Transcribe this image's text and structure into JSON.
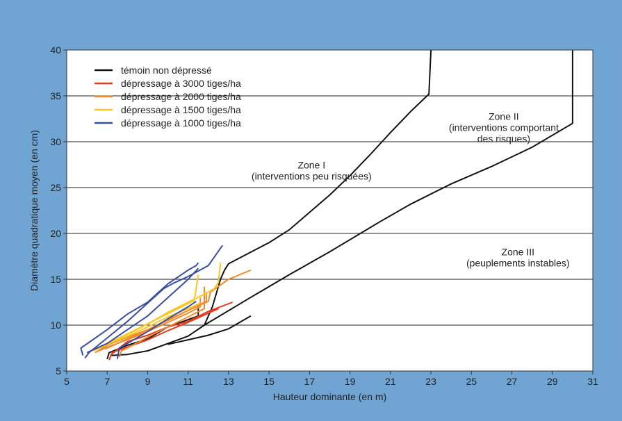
{
  "chart_data": {
    "type": "line",
    "title": "",
    "xlabel": "Hauteur dominante (en m)",
    "ylabel": "Diamètre quadratique moyen (en cm)",
    "xlim": [
      5,
      31
    ],
    "ylim": [
      5,
      40
    ],
    "xticks": [
      5,
      7,
      9,
      11,
      13,
      15,
      17,
      19,
      21,
      23,
      25,
      27,
      29,
      31
    ],
    "yticks": [
      5,
      10,
      15,
      20,
      25,
      30,
      35,
      40
    ],
    "grid": "horizontal",
    "legend_position": "top-left",
    "colors": {
      "background": "#6fa4d3",
      "plot": "#ffffff",
      "temoin": "#111111",
      "d3000": "#e53a1f",
      "d2000": "#f28c2a",
      "d1500": "#f9c722",
      "d1000": "#3a4ea0"
    },
    "series": [
      {
        "name": "témoin non dépressé",
        "color": "#111111",
        "lines": [
          [
            [
              7.0,
              6.3
            ],
            [
              7.1,
              7.0
            ],
            [
              8.0,
              7.8
            ],
            [
              9.0,
              8.5
            ],
            [
              10.0,
              9.8
            ],
            [
              11.0,
              10.6
            ],
            [
              11.5,
              11.0
            ],
            [
              11.5,
              12.0
            ]
          ],
          [
            [
              10.0,
              7.9
            ],
            [
              11.0,
              8.4
            ],
            [
              12.0,
              8.9
            ],
            [
              13.0,
              9.6
            ],
            [
              14.1,
              11.0
            ]
          ],
          [
            [
              7.2,
              6.7
            ],
            [
              8.0,
              6.8
            ],
            [
              9.0,
              7.2
            ],
            [
              10.0,
              8.0
            ],
            [
              11.0,
              8.8
            ],
            [
              11.8,
              10.0
            ],
            [
              12.2,
              12.0
            ],
            [
              12.6,
              15.0
            ],
            [
              12.8,
              16.0
            ]
          ]
        ]
      },
      {
        "name": "dépressage à 3000 tiges/ha",
        "color": "#e53a1f",
        "lines": [
          [
            [
              7.1,
              6.2
            ],
            [
              7.2,
              6.8
            ],
            [
              8.0,
              8.2
            ],
            [
              9.0,
              8.9
            ],
            [
              10.0,
              9.8
            ],
            [
              11.0,
              10.4
            ],
            [
              12.0,
              11.5
            ],
            [
              13.2,
              12.5
            ]
          ],
          [
            [
              7.2,
              7.0
            ],
            [
              8.0,
              7.6
            ],
            [
              9.0,
              8.4
            ],
            [
              10.0,
              9.4
            ],
            [
              11.0,
              10.3
            ],
            [
              12.0,
              11.3
            ],
            [
              12.5,
              11.8
            ]
          ]
        ]
      },
      {
        "name": "dépressage à 2000 tiges/ha",
        "color": "#f28c2a",
        "lines": [
          [
            [
              6.4,
              7.0
            ],
            [
              7.0,
              7.8
            ],
            [
              8.0,
              8.7
            ],
            [
              9.0,
              9.5
            ],
            [
              10.0,
              10.5
            ],
            [
              11.0,
              11.6
            ],
            [
              11.9,
              12.6
            ],
            [
              11.9,
              13.6
            ]
          ],
          [
            [
              6.9,
              7.4
            ],
            [
              8.0,
              8.5
            ],
            [
              9.0,
              9.5
            ],
            [
              10.0,
              10.6
            ],
            [
              11.0,
              11.6
            ],
            [
              12.0,
              12.6
            ],
            [
              12.1,
              13.6
            ],
            [
              13.0,
              15.0
            ],
            [
              14.1,
              16.0
            ]
          ],
          [
            [
              7.6,
              6.5
            ],
            [
              7.7,
              7.2
            ],
            [
              8.0,
              7.5
            ],
            [
              9.0,
              8.7
            ],
            [
              10.0,
              9.8
            ],
            [
              11.0,
              10.9
            ],
            [
              11.8,
              11.8
            ],
            [
              11.8,
              14.2
            ]
          ],
          [
            [
              6.6,
              7.2
            ],
            [
              7.0,
              7.6
            ],
            [
              8.0,
              8.4
            ],
            [
              9.0,
              9.3
            ],
            [
              10.0,
              10.3
            ],
            [
              11.0,
              11.3
            ],
            [
              11.6,
              12.0
            ],
            [
              11.6,
              13.0
            ]
          ]
        ]
      },
      {
        "name": "dépressage à 1500 tiges/ha",
        "color": "#f9c722",
        "lines": [
          [
            [
              6.5,
              7.5
            ],
            [
              7.0,
              8.0
            ],
            [
              8.0,
              9.0
            ],
            [
              9.0,
              10.1
            ],
            [
              10.0,
              11.4
            ],
            [
              11.0,
              12.5
            ],
            [
              12.0,
              13.6
            ],
            [
              12.3,
              14.0
            ],
            [
              12.5,
              14.7
            ],
            [
              12.6,
              16.8
            ]
          ],
          [
            [
              6.8,
              7.8
            ],
            [
              7.5,
              8.5
            ],
            [
              8.5,
              9.6
            ],
            [
              9.5,
              10.7
            ],
            [
              10.5,
              11.8
            ],
            [
              11.3,
              12.7
            ],
            [
              11.4,
              14.0
            ],
            [
              11.5,
              15.5
            ]
          ],
          [
            [
              6.3,
              7.2
            ],
            [
              7.0,
              7.9
            ],
            [
              8.0,
              8.8
            ],
            [
              9.0,
              9.8
            ],
            [
              10.0,
              10.9
            ],
            [
              11.0,
              11.8
            ],
            [
              11.6,
              12.4
            ]
          ]
        ]
      },
      {
        "name": "dépressage à 1000 tiges/ha",
        "color": "#3a4ea0",
        "lines": [
          [
            [
              5.8,
              6.7
            ],
            [
              5.7,
              7.5
            ],
            [
              7.0,
              9.5
            ],
            [
              8.0,
              11.2
            ],
            [
              9.0,
              12.5
            ],
            [
              9.5,
              13.5
            ],
            [
              10.0,
              14.5
            ],
            [
              11.0,
              16.0
            ],
            [
              11.4,
              16.5
            ],
            [
              11.5,
              16.8
            ]
          ],
          [
            [
              5.9,
              6.4
            ],
            [
              6.1,
              7.0
            ],
            [
              7.0,
              8.6
            ],
            [
              8.0,
              10.4
            ],
            [
              9.0,
              12.4
            ],
            [
              9.8,
              14.0
            ],
            [
              10.3,
              14.6
            ],
            [
              11.0,
              15.3
            ],
            [
              12.0,
              16.5
            ],
            [
              12.7,
              18.7
            ]
          ],
          [
            [
              6.0,
              7.0
            ],
            [
              7.0,
              8.0
            ],
            [
              8.0,
              9.5
            ],
            [
              9.0,
              11.0
            ],
            [
              10.0,
              13.0
            ],
            [
              11.0,
              15.0
            ],
            [
              11.5,
              16.2
            ]
          ],
          [
            [
              7.5,
              6.3
            ],
            [
              7.6,
              7.5
            ],
            [
              8.0,
              8.0
            ],
            [
              9.0,
              9.3
            ],
            [
              10.0,
              10.7
            ],
            [
              11.0,
              12.0
            ],
            [
              11.4,
              12.6
            ]
          ]
        ]
      }
    ],
    "boundaries": [
      [
        [
          12.8,
          16.0
        ],
        [
          13.0,
          16.7
        ],
        [
          15.0,
          19.0
        ],
        [
          16.0,
          20.4
        ],
        [
          17.0,
          22.3
        ],
        [
          18.0,
          24.2
        ],
        [
          19.0,
          26.3
        ],
        [
          20.0,
          28.6
        ],
        [
          21.0,
          31.0
        ],
        [
          22.0,
          33.3
        ],
        [
          22.9,
          35.2
        ],
        [
          23.0,
          40.0
        ]
      ],
      [
        [
          11.8,
          10.0
        ],
        [
          14.0,
          12.9
        ],
        [
          16.0,
          15.5
        ],
        [
          18.0,
          18.0
        ],
        [
          20.5,
          21.3
        ],
        [
          22.0,
          23.2
        ],
        [
          24.0,
          25.4
        ],
        [
          26.0,
          27.3
        ],
        [
          28.0,
          29.4
        ],
        [
          30.0,
          32.0
        ],
        [
          30.0,
          40.0
        ]
      ]
    ],
    "annotations": [
      {
        "lines": [
          "Zone I",
          "(interventions peu risquées)"
        ],
        "x": 17.1,
        "y": 27.1
      },
      {
        "lines": [
          "Zone II",
          "(interventions comportant",
          "des risques)"
        ],
        "x": 26.6,
        "y": 32.4
      },
      {
        "lines": [
          "Zone III",
          "(peuplements instables)"
        ],
        "x": 27.3,
        "y": 17.6
      }
    ]
  }
}
